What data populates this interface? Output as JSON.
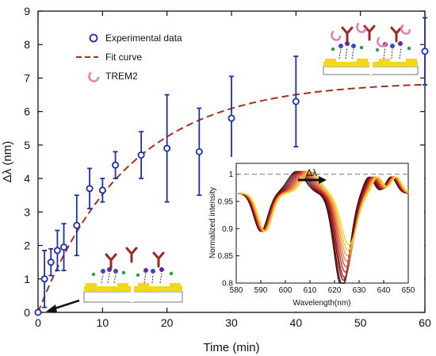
{
  "chart_data": [
    {
      "type": "scatter",
      "xlabel": "Time (min)",
      "ylabel": "Δλ (nm)",
      "xlim": [
        0,
        60
      ],
      "ylim": [
        0,
        9
      ],
      "xticks": [
        0,
        10,
        20,
        30,
        40,
        50,
        60
      ],
      "yticks": [
        0,
        1,
        2,
        3,
        4,
        5,
        6,
        7,
        8,
        9
      ],
      "grid": false,
      "legend_position": "top-left",
      "legend": [
        "Experimental data",
        "Fit curve",
        "TREM2"
      ],
      "colors": {
        "data": "#1f2fa8",
        "fit": "#a8321d",
        "trem2": "#e87fb5",
        "gold": "#f3d81a"
      },
      "series": [
        {
          "name": "Experimental data",
          "kind": "points_with_error",
          "x": [
            0,
            1,
            2,
            3,
            4,
            6,
            8,
            10,
            12,
            16,
            20,
            25,
            30,
            40,
            60
          ],
          "y": [
            0.0,
            1.0,
            1.5,
            1.85,
            1.95,
            2.6,
            3.7,
            3.65,
            4.4,
            4.7,
            4.9,
            4.8,
            5.8,
            6.3,
            7.8
          ],
          "err": [
            0.0,
            0.85,
            0.4,
            0.6,
            0.7,
            0.9,
            0.6,
            0.35,
            0.4,
            0.7,
            1.6,
            1.3,
            1.25,
            1.35,
            1.0
          ]
        },
        {
          "name": "Fit curve",
          "kind": "line",
          "model": "y = 6.9 * (1 - exp(-x / 14))",
          "amplitude": 6.9,
          "tau": 14
        }
      ]
    },
    {
      "type": "line",
      "xlabel": "Wavelength(nm)",
      "ylabel": "Normalized intensity",
      "annotation": "Δλ",
      "xlim": [
        580,
        650
      ],
      "ylim": [
        0.8,
        1.02
      ],
      "xticks": [
        580,
        590,
        600,
        610,
        620,
        630,
        640,
        650
      ],
      "yticks": [
        0.8,
        0.85,
        0.9,
        0.95,
        1
      ],
      "reference_line_y": 1,
      "series_colors": [
        "#3b0a0a",
        "#5e1010",
        "#821818",
        "#a42121",
        "#c4302c",
        "#d9553a",
        "#e97b46",
        "#f2a048",
        "#f6c232",
        "#f7d51c"
      ],
      "peak1_positions": [
        604.5,
        605.2,
        605.9,
        606.6,
        607.3,
        608.0,
        608.6,
        609.2,
        609.8,
        610.5
      ],
      "dip_depths": [
        0.175,
        0.17,
        0.16,
        0.155,
        0.145,
        0.135,
        0.125,
        0.115,
        0.105,
        0.095
      ]
    }
  ]
}
